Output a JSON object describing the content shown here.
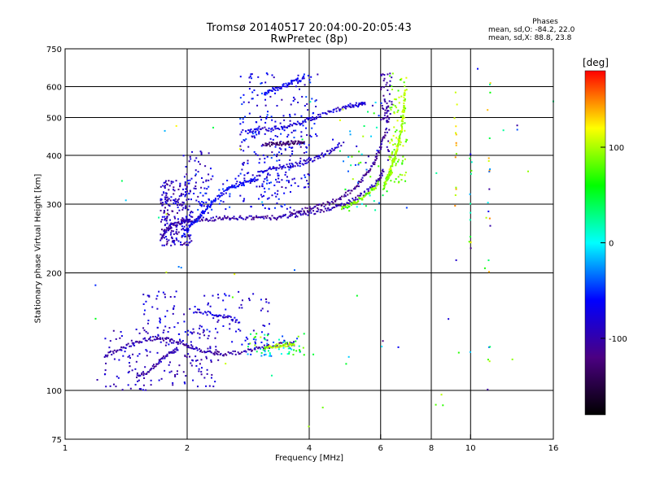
{
  "header": {
    "title": "Tromsø 20140517 20:04:00-20:05:43",
    "subtitle": "RwPretec (8p)"
  },
  "stats": {
    "title": "Phases",
    "line_o": "mean, sd,O: -84.2, 22.0",
    "line_x": "mean, sd,X:  88.8, 23.8"
  },
  "colorbar": {
    "unit": "[deg]",
    "ticks": [
      "100",
      "0",
      "-100"
    ],
    "tick_values": [
      100,
      0,
      -100
    ],
    "range": [
      -180,
      180
    ],
    "colors": [
      "#000000",
      "#4b0082",
      "#0000ff",
      "#00ffff",
      "#00ff00",
      "#ffff00",
      "#ff0000"
    ]
  },
  "chart_data": {
    "type": "scatter",
    "title": "Tromsø 20140517 20:04:00-20:05:43",
    "subtitle": "RwPretec (8p)",
    "xlabel": "Frequency [MHz]",
    "ylabel": "Stationary phase Virtual Height [km]",
    "xscale": "log",
    "yscale": "log",
    "xlim": [
      1,
      16
    ],
    "ylim": [
      75,
      750
    ],
    "xticks": [
      1,
      2,
      4,
      6,
      8,
      10,
      16
    ],
    "xtick_labels": [
      "1",
      "2",
      "4",
      "6",
      "8",
      "10",
      "16"
    ],
    "xgrid": [
      2,
      4,
      6,
      8,
      10
    ],
    "yticks": [
      75,
      100,
      200,
      300,
      400,
      500,
      600,
      750
    ],
    "ytick_labels": [
      "75",
      "100",
      "200",
      "300",
      "400",
      "500",
      "600",
      "750"
    ],
    "ygrid": [
      100,
      200,
      300,
      400,
      500,
      600
    ],
    "grid": true,
    "color_by": "phase [deg]",
    "traces": [
      {
        "x": [
          1.72,
          1.78,
          1.85,
          1.95,
          2.05,
          2.2,
          2.4,
          2.6,
          2.85,
          3.1,
          3.4,
          3.7,
          4.0,
          4.4,
          4.8,
          5.2,
          5.6,
          5.9,
          6.1
        ],
        "y": [
          245,
          258,
          265,
          270,
          272,
          274,
          276,
          277,
          277,
          276,
          278,
          281,
          285,
          290,
          298,
          310,
          325,
          345,
          365
        ],
        "phase": -100
      },
      {
        "x": [
          3.6,
          4.0,
          4.4,
          4.8,
          5.2,
          5.5,
          5.8,
          6.0,
          6.2
        ],
        "y": [
          285,
          292,
          300,
          312,
          330,
          355,
          385,
          420,
          465
        ],
        "phase": -110
      },
      {
        "x": [
          3.0,
          3.3,
          3.6,
          3.9,
          4.2,
          4.5,
          4.8
        ],
        "y": [
          365,
          372,
          378,
          384,
          395,
          410,
          430
        ],
        "phase": -85
      },
      {
        "x": [
          2.8,
          3.0,
          3.3,
          3.6,
          3.9,
          4.2,
          4.6,
          5.0,
          5.3,
          5.5
        ],
        "y": [
          460,
          465,
          470,
          475,
          490,
          505,
          520,
          535,
          540,
          545
        ],
        "phase": -80
      },
      {
        "x": [
          6.2,
          6.35,
          6.5,
          6.6,
          6.7,
          6.8,
          6.85,
          6.9
        ],
        "y": [
          345,
          370,
          395,
          420,
          450,
          490,
          540,
          600
        ],
        "phase": 100
      },
      {
        "x": [
          6.1,
          6.2,
          6.3,
          6.4
        ],
        "y": [
          330,
          345,
          355,
          365
        ],
        "phase": 90
      },
      {
        "x": [
          4.8,
          5.1,
          5.4,
          5.7,
          5.95
        ],
        "y": [
          292,
          300,
          312,
          325,
          340
        ],
        "phase": 85
      },
      {
        "x": [
          1.25,
          1.35,
          1.5,
          1.65,
          1.8,
          1.95,
          2.1,
          2.3,
          2.5,
          2.8,
          3.1,
          3.4,
          3.7
        ],
        "y": [
          122,
          127,
          133,
          136,
          135,
          132,
          128,
          125,
          124,
          126,
          129,
          131,
          132
        ],
        "phase": -100
      },
      {
        "x": [
          1.5,
          1.6,
          1.7,
          1.8,
          1.9
        ],
        "y": [
          108,
          112,
          118,
          124,
          128
        ],
        "phase": -100
      },
      {
        "x": [
          3.1,
          3.3,
          3.5,
          3.7
        ],
        "y": [
          128,
          130,
          131,
          132
        ],
        "phase": 100
      },
      {
        "x": [
          2.1,
          2.3,
          2.5,
          2.7
        ],
        "y": [
          160,
          157,
          154,
          150
        ],
        "phase": -80
      },
      {
        "x": [
          1.95,
          2.05,
          2.15,
          2.25,
          2.35,
          2.5,
          2.65,
          2.8,
          3.0
        ],
        "y": [
          250,
          265,
          280,
          295,
          310,
          325,
          335,
          342,
          348
        ],
        "phase": -65
      },
      {
        "x": [
          3.1,
          3.3,
          3.5,
          3.7,
          3.9
        ],
        "y": [
          575,
          590,
          605,
          620,
          632
        ],
        "phase": -70
      },
      {
        "x": [
          3.1,
          3.3,
          3.5,
          3.7,
          3.9
        ],
        "y": [
          425,
          428,
          430,
          431,
          432
        ],
        "phase": -130
      }
    ],
    "clusters": [
      {
        "x": [
          1.72,
          2.05
        ],
        "y": [
          235,
          345
        ],
        "n": 230,
        "phase": [
          -120,
          -60
        ]
      },
      {
        "x": [
          1.95,
          2.3
        ],
        "y": [
          275,
          415
        ],
        "n": 60,
        "phase": [
          -110,
          -60
        ]
      },
      {
        "x": [
          2.1,
          3.6
        ],
        "y": [
          290,
          360
        ],
        "n": 90,
        "phase": [
          -90,
          -40
        ]
      },
      {
        "x": [
          2.7,
          4.0
        ],
        "y": [
          330,
          440
        ],
        "n": 120,
        "phase": [
          -110,
          -40
        ]
      },
      {
        "x": [
          2.7,
          4.2
        ],
        "y": [
          440,
          650
        ],
        "n": 140,
        "phase": [
          -100,
          -40
        ]
      },
      {
        "x": [
          1.25,
          2.4
        ],
        "y": [
          100,
          145
        ],
        "n": 160,
        "phase": [
          -110,
          -70
        ]
      },
      {
        "x": [
          1.55,
          3.2
        ],
        "y": [
          130,
          180
        ],
        "n": 110,
        "phase": [
          -100,
          -55
        ]
      },
      {
        "x": [
          2.8,
          3.9
        ],
        "y": [
          122,
          140
        ],
        "n": 70,
        "phase": [
          -60,
          110
        ]
      },
      {
        "x": [
          6.3,
          7.0
        ],
        "y": [
          340,
          650
        ],
        "n": 100,
        "phase": [
          70,
          115
        ]
      },
      {
        "x": [
          4.7,
          6.1
        ],
        "y": [
          285,
          560
        ],
        "n": 50,
        "phase": [
          -100,
          120
        ]
      },
      {
        "x": [
          6.0,
          6.4
        ],
        "y": [
          480,
          650
        ],
        "n": 45,
        "phase": [
          -120,
          -90
        ]
      },
      {
        "x": [
          1.0,
          16.0
        ],
        "y": [
          80,
          700
        ],
        "n": 55,
        "phase": [
          -120,
          130
        ]
      }
    ],
    "columns": [
      {
        "x": 9.2,
        "y": [
          290,
          690
        ],
        "n": 14,
        "phase": [
          80,
          150
        ]
      },
      {
        "x": 10.0,
        "y": [
          190,
          510
        ],
        "n": 14,
        "phase": [
          -120,
          140
        ]
      },
      {
        "x": 11.1,
        "y": [
          95,
          630
        ],
        "n": 22,
        "phase": [
          -120,
          150
        ]
      },
      {
        "x": 6.25,
        "y": [
          360,
          640
        ],
        "n": 20,
        "phase": [
          -120,
          -80
        ]
      }
    ]
  }
}
